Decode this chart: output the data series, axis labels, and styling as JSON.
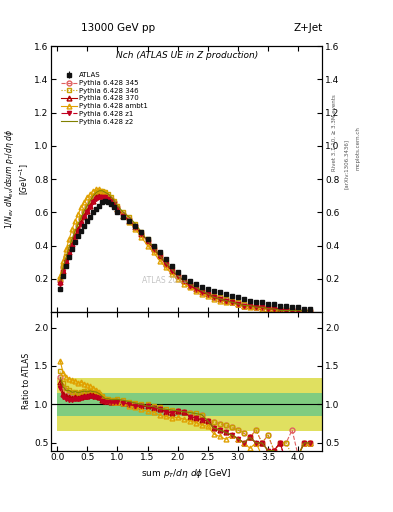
{
  "title_top": "13000 GeV pp",
  "title_right": "Z+Jet",
  "plot_title": "Nch (ATLAS UE in Z production)",
  "xlabel": "sum p_{T}/d\\eta d\\phi [GeV]",
  "ylabel_main": "1/N_{ev} dN_{ev}/dsum p_{T}/d\\eta d\\phi [GeV]^{-1}",
  "ylabel_ratio": "Ratio to ATLAS",
  "right_label1": "Rivet 3.1.10, ≥ 3.3M events",
  "right_label2": "[arXiv:1306.3436]",
  "right_label3": "mcplots.cern.ch",
  "watermark": "ATLAS 2011",
  "xlim": [
    -0.1,
    4.4
  ],
  "ylim_main": [
    0.0,
    1.6
  ],
  "ylim_ratio": [
    0.4,
    2.2
  ],
  "ratio_yticks": [
    0.5,
    1.0,
    1.5,
    2.0
  ],
  "main_yticks": [
    0.2,
    0.4,
    0.6,
    0.8,
    1.0,
    1.2,
    1.4,
    1.6
  ],
  "atlas_x": [
    0.05,
    0.1,
    0.15,
    0.2,
    0.25,
    0.3,
    0.35,
    0.4,
    0.45,
    0.5,
    0.55,
    0.6,
    0.65,
    0.7,
    0.75,
    0.8,
    0.85,
    0.9,
    0.95,
    1.0,
    1.1,
    1.2,
    1.3,
    1.4,
    1.5,
    1.6,
    1.7,
    1.8,
    1.9,
    2.0,
    2.1,
    2.2,
    2.3,
    2.4,
    2.5,
    2.6,
    2.7,
    2.8,
    2.9,
    3.0,
    3.1,
    3.2,
    3.3,
    3.4,
    3.5,
    3.6,
    3.7,
    3.8,
    3.9,
    4.0,
    4.1,
    4.2
  ],
  "atlas_y": [
    0.14,
    0.22,
    0.28,
    0.33,
    0.38,
    0.42,
    0.46,
    0.49,
    0.52,
    0.55,
    0.57,
    0.6,
    0.62,
    0.64,
    0.66,
    0.67,
    0.66,
    0.65,
    0.63,
    0.6,
    0.57,
    0.55,
    0.52,
    0.48,
    0.44,
    0.4,
    0.36,
    0.32,
    0.28,
    0.24,
    0.21,
    0.19,
    0.17,
    0.15,
    0.14,
    0.13,
    0.12,
    0.11,
    0.1,
    0.09,
    0.08,
    0.07,
    0.06,
    0.06,
    0.05,
    0.05,
    0.04,
    0.04,
    0.03,
    0.03,
    0.02,
    0.02
  ],
  "atlas_yerr": [
    0.01,
    0.01,
    0.01,
    0.01,
    0.01,
    0.01,
    0.01,
    0.01,
    0.01,
    0.01,
    0.01,
    0.01,
    0.01,
    0.01,
    0.01,
    0.01,
    0.01,
    0.01,
    0.01,
    0.01,
    0.01,
    0.01,
    0.01,
    0.01,
    0.01,
    0.01,
    0.01,
    0.01,
    0.005,
    0.005,
    0.005,
    0.005,
    0.005,
    0.005,
    0.005,
    0.005,
    0.004,
    0.004,
    0.003,
    0.003,
    0.003,
    0.003,
    0.002,
    0.002,
    0.002,
    0.002,
    0.002,
    0.002,
    0.001,
    0.001,
    0.001,
    0.001
  ],
  "series": [
    {
      "label": "Pythia 6.428 345",
      "color": "#e06060",
      "linestyle": "--",
      "marker": "o",
      "markersize": 3.5,
      "fillstyle": "none",
      "x": [
        0.05,
        0.1,
        0.15,
        0.2,
        0.25,
        0.3,
        0.35,
        0.4,
        0.45,
        0.5,
        0.55,
        0.6,
        0.65,
        0.7,
        0.75,
        0.8,
        0.85,
        0.9,
        0.95,
        1.0,
        1.1,
        1.2,
        1.3,
        1.4,
        1.5,
        1.6,
        1.7,
        1.8,
        1.9,
        2.0,
        2.1,
        2.2,
        2.3,
        2.4,
        2.5,
        2.6,
        2.7,
        2.8,
        2.9,
        3.0,
        3.1,
        3.2,
        3.3,
        3.4,
        3.5,
        3.6,
        3.7,
        3.8,
        3.9,
        4.0,
        4.1,
        4.2
      ],
      "y": [
        0.19,
        0.27,
        0.33,
        0.38,
        0.43,
        0.48,
        0.52,
        0.56,
        0.6,
        0.63,
        0.66,
        0.69,
        0.71,
        0.72,
        0.72,
        0.71,
        0.7,
        0.68,
        0.66,
        0.63,
        0.59,
        0.56,
        0.52,
        0.47,
        0.43,
        0.38,
        0.34,
        0.29,
        0.25,
        0.22,
        0.19,
        0.17,
        0.14,
        0.13,
        0.11,
        0.1,
        0.09,
        0.08,
        0.07,
        0.06,
        0.05,
        0.04,
        0.04,
        0.03,
        0.03,
        0.02,
        0.02,
        0.02,
        0.02,
        0.01,
        0.01,
        0.01
      ]
    },
    {
      "label": "Pythia 6.428 346",
      "color": "#c8a000",
      "linestyle": ":",
      "marker": "s",
      "markersize": 3.5,
      "fillstyle": "none",
      "x": [
        0.05,
        0.1,
        0.15,
        0.2,
        0.25,
        0.3,
        0.35,
        0.4,
        0.45,
        0.5,
        0.55,
        0.6,
        0.65,
        0.7,
        0.75,
        0.8,
        0.85,
        0.9,
        0.95,
        1.0,
        1.1,
        1.2,
        1.3,
        1.4,
        1.5,
        1.6,
        1.7,
        1.8,
        1.9,
        2.0,
        2.1,
        2.2,
        2.3,
        2.4,
        2.5,
        2.6,
        2.7,
        2.8,
        2.9,
        3.0,
        3.1,
        3.2,
        3.3,
        3.4,
        3.5,
        3.6,
        3.7,
        3.8,
        3.9,
        4.0,
        4.1,
        4.2
      ],
      "y": [
        0.2,
        0.28,
        0.34,
        0.39,
        0.44,
        0.49,
        0.53,
        0.57,
        0.61,
        0.64,
        0.67,
        0.7,
        0.72,
        0.73,
        0.73,
        0.72,
        0.71,
        0.69,
        0.67,
        0.64,
        0.6,
        0.57,
        0.53,
        0.48,
        0.44,
        0.39,
        0.35,
        0.3,
        0.26,
        0.22,
        0.19,
        0.17,
        0.15,
        0.13,
        0.11,
        0.1,
        0.09,
        0.08,
        0.07,
        0.06,
        0.05,
        0.04,
        0.04,
        0.03,
        0.03,
        0.02,
        0.02,
        0.02,
        0.01,
        0.01,
        0.01,
        0.01
      ]
    },
    {
      "label": "Pythia 6.428 370",
      "color": "#b00000",
      "linestyle": "-",
      "marker": "^",
      "markersize": 3.5,
      "fillstyle": "none",
      "x": [
        0.05,
        0.1,
        0.15,
        0.2,
        0.25,
        0.3,
        0.35,
        0.4,
        0.45,
        0.5,
        0.55,
        0.6,
        0.65,
        0.7,
        0.75,
        0.8,
        0.85,
        0.9,
        0.95,
        1.0,
        1.1,
        1.2,
        1.3,
        1.4,
        1.5,
        1.6,
        1.7,
        1.8,
        1.9,
        2.0,
        2.1,
        2.2,
        2.3,
        2.4,
        2.5,
        2.6,
        2.7,
        2.8,
        2.9,
        3.0,
        3.1,
        3.2,
        3.3,
        3.4,
        3.5,
        3.6,
        3.7,
        3.8,
        3.9,
        4.0,
        4.1,
        4.2
      ],
      "y": [
        0.18,
        0.25,
        0.31,
        0.36,
        0.41,
        0.46,
        0.5,
        0.54,
        0.58,
        0.61,
        0.64,
        0.67,
        0.69,
        0.7,
        0.7,
        0.7,
        0.69,
        0.67,
        0.65,
        0.62,
        0.58,
        0.55,
        0.51,
        0.47,
        0.43,
        0.38,
        0.34,
        0.29,
        0.25,
        0.22,
        0.19,
        0.16,
        0.14,
        0.12,
        0.11,
        0.09,
        0.08,
        0.07,
        0.06,
        0.05,
        0.04,
        0.04,
        0.03,
        0.03,
        0.02,
        0.02,
        0.02,
        0.01,
        0.01,
        0.01,
        0.01,
        0.01
      ]
    },
    {
      "label": "Pythia 6.428 ambt1",
      "color": "#e0a000",
      "linestyle": "-",
      "marker": "^",
      "markersize": 3.5,
      "fillstyle": "none",
      "x": [
        0.05,
        0.1,
        0.15,
        0.2,
        0.25,
        0.3,
        0.35,
        0.4,
        0.45,
        0.5,
        0.55,
        0.6,
        0.65,
        0.7,
        0.75,
        0.8,
        0.85,
        0.9,
        0.95,
        1.0,
        1.1,
        1.2,
        1.3,
        1.4,
        1.5,
        1.6,
        1.7,
        1.8,
        1.9,
        2.0,
        2.1,
        2.2,
        2.3,
        2.4,
        2.5,
        2.6,
        2.7,
        2.8,
        2.9,
        3.0,
        3.1,
        3.2,
        3.3,
        3.4,
        3.5,
        3.6,
        3.7,
        3.8,
        3.9,
        4.0,
        4.1,
        4.2
      ],
      "y": [
        0.22,
        0.31,
        0.38,
        0.44,
        0.5,
        0.55,
        0.59,
        0.63,
        0.66,
        0.69,
        0.71,
        0.73,
        0.74,
        0.74,
        0.73,
        0.72,
        0.7,
        0.68,
        0.65,
        0.62,
        0.58,
        0.54,
        0.5,
        0.45,
        0.4,
        0.36,
        0.31,
        0.27,
        0.23,
        0.2,
        0.17,
        0.15,
        0.13,
        0.11,
        0.1,
        0.08,
        0.07,
        0.06,
        0.06,
        0.05,
        0.04,
        0.03,
        0.03,
        0.02,
        0.02,
        0.02,
        0.01,
        0.01,
        0.01,
        0.01,
        0.01,
        0.01
      ]
    },
    {
      "label": "Pythia 6.428 z1",
      "color": "#c00020",
      "linestyle": "-.",
      "marker": "v",
      "markersize": 3.0,
      "fillstyle": "full",
      "x": [
        0.05,
        0.1,
        0.15,
        0.2,
        0.25,
        0.3,
        0.35,
        0.4,
        0.45,
        0.5,
        0.55,
        0.6,
        0.65,
        0.7,
        0.75,
        0.8,
        0.85,
        0.9,
        0.95,
        1.0,
        1.1,
        1.2,
        1.3,
        1.4,
        1.5,
        1.6,
        1.7,
        1.8,
        1.9,
        2.0,
        2.1,
        2.2,
        2.3,
        2.4,
        2.5,
        2.6,
        2.7,
        2.8,
        2.9,
        3.0,
        3.1,
        3.2,
        3.3,
        3.4,
        3.5,
        3.6,
        3.7,
        3.8,
        3.9,
        4.0,
        4.1,
        4.2
      ],
      "y": [
        0.17,
        0.24,
        0.3,
        0.35,
        0.4,
        0.45,
        0.49,
        0.53,
        0.57,
        0.6,
        0.63,
        0.66,
        0.68,
        0.69,
        0.69,
        0.69,
        0.68,
        0.67,
        0.65,
        0.62,
        0.58,
        0.55,
        0.51,
        0.47,
        0.43,
        0.38,
        0.34,
        0.29,
        0.25,
        0.22,
        0.19,
        0.16,
        0.14,
        0.12,
        0.11,
        0.09,
        0.08,
        0.07,
        0.06,
        0.05,
        0.04,
        0.04,
        0.03,
        0.03,
        0.02,
        0.02,
        0.02,
        0.01,
        0.01,
        0.01,
        0.01,
        0.01
      ]
    },
    {
      "label": "Pythia 6.428 z2",
      "color": "#808000",
      "linestyle": "-",
      "marker": "None",
      "markersize": 0,
      "fillstyle": "none",
      "x": [
        0.05,
        0.1,
        0.15,
        0.2,
        0.25,
        0.3,
        0.35,
        0.4,
        0.45,
        0.5,
        0.55,
        0.6,
        0.65,
        0.7,
        0.75,
        0.8,
        0.85,
        0.9,
        0.95,
        1.0,
        1.1,
        1.2,
        1.3,
        1.4,
        1.5,
        1.6,
        1.7,
        1.8,
        1.9,
        2.0,
        2.1,
        2.2,
        2.3,
        2.4,
        2.5,
        2.6,
        2.7,
        2.8,
        2.9,
        3.0,
        3.1,
        3.2,
        3.3,
        3.4,
        3.5,
        3.6,
        3.7,
        3.8,
        3.9,
        4.0,
        4.1,
        4.2
      ],
      "y": [
        0.19,
        0.27,
        0.33,
        0.39,
        0.44,
        0.49,
        0.53,
        0.57,
        0.61,
        0.64,
        0.67,
        0.7,
        0.72,
        0.73,
        0.73,
        0.72,
        0.71,
        0.69,
        0.67,
        0.64,
        0.6,
        0.57,
        0.53,
        0.48,
        0.43,
        0.39,
        0.34,
        0.3,
        0.26,
        0.22,
        0.19,
        0.17,
        0.15,
        0.13,
        0.11,
        0.09,
        0.08,
        0.07,
        0.06,
        0.05,
        0.04,
        0.04,
        0.03,
        0.03,
        0.02,
        0.02,
        0.01,
        0.01,
        0.01,
        0.01,
        0.01,
        0.01
      ]
    }
  ],
  "band_x_edges": [
    0.0,
    0.5,
    1.0,
    1.5,
    2.0,
    2.5,
    3.0,
    3.5,
    4.0,
    4.5
  ],
  "band_green_low": [
    0.85,
    0.85,
    0.85,
    0.85,
    0.85,
    0.85,
    0.85,
    0.85,
    0.85
  ],
  "band_green_high": [
    1.15,
    1.15,
    1.15,
    1.15,
    1.15,
    1.15,
    1.15,
    1.15,
    1.15
  ],
  "band_yellow_low": [
    0.65,
    0.65,
    0.65,
    0.65,
    0.65,
    0.65,
    0.65,
    0.65,
    0.65
  ],
  "band_yellow_high": [
    1.35,
    1.35,
    1.35,
    1.35,
    1.35,
    1.35,
    1.35,
    1.35,
    1.35
  ],
  "green_color": "#80cc80",
  "yellow_color": "#e0e060",
  "atlas_color": "#111111",
  "background_color": "#ffffff"
}
